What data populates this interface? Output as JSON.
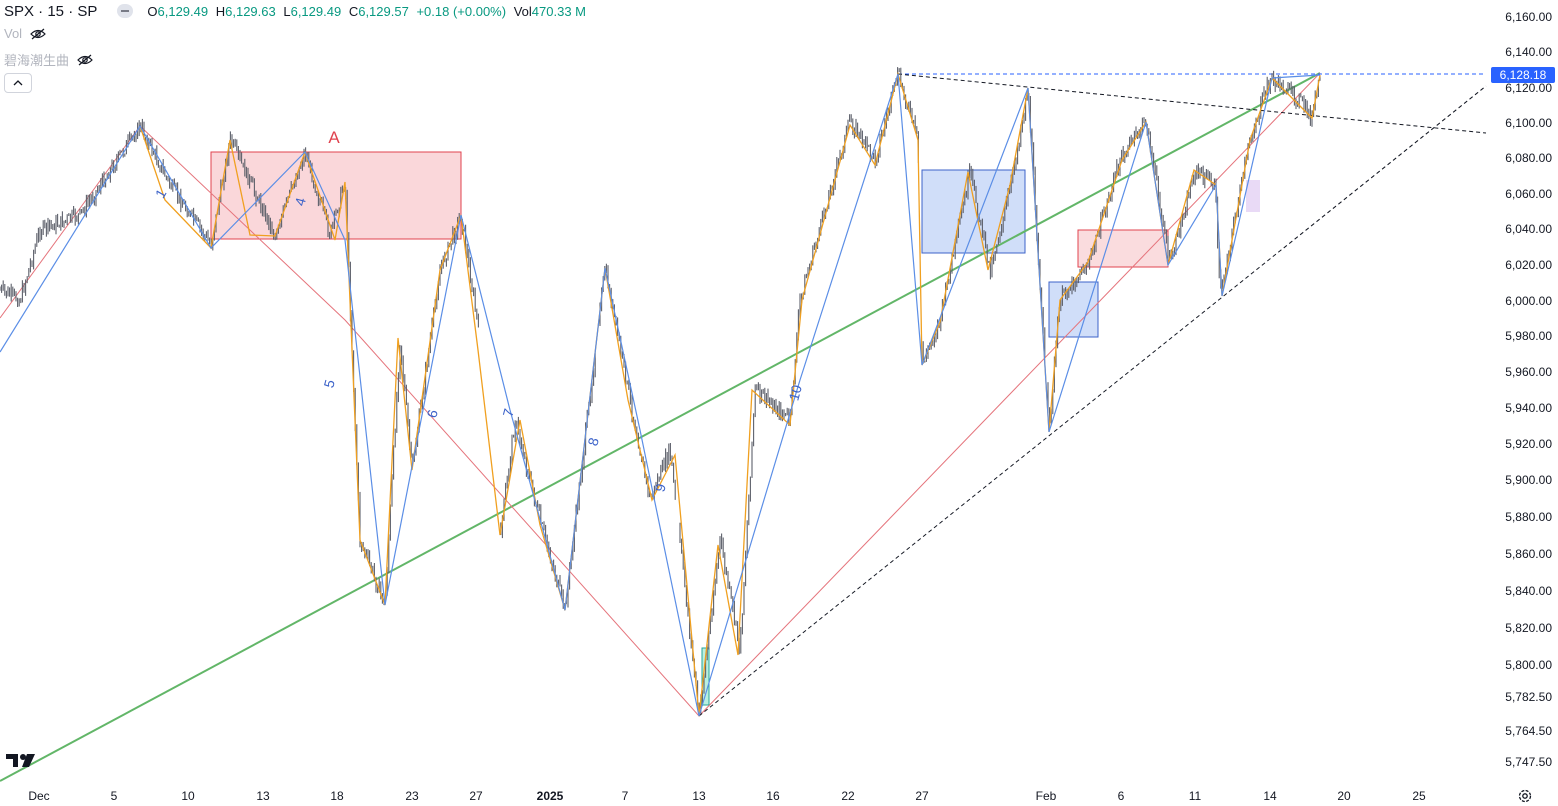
{
  "symbol": {
    "name": "SPX · 15 · SP"
  },
  "ohlc": {
    "o_label": "O",
    "o": "6,129.49",
    "h_label": "H",
    "h": "6,129.63",
    "l_label": "L",
    "l": "6,129.49",
    "c_label": "C",
    "c": "6,129.57",
    "change": "+0.18 (+0.00%)",
    "vol_label": "Vol",
    "vol": "470.33 M"
  },
  "indicators": [
    {
      "label": "Vol",
      "icon": "eye-hidden-icon"
    },
    {
      "label": "碧海潮生曲",
      "icon": "eye-hidden-icon"
    }
  ],
  "price_axis": {
    "ticks": [
      "6,160.00",
      "6,140.00",
      "6,120.00",
      "6,100.00",
      "6,080.00",
      "6,060.00",
      "6,040.00",
      "6,020.00",
      "6,000.00",
      "5,980.00",
      "5,960.00",
      "5,940.00",
      "5,920.00",
      "5,900.00",
      "5,880.00",
      "5,860.00",
      "5,840.00",
      "5,820.00",
      "5,800.00",
      "5,782.50",
      "5,764.50",
      "5,747.50"
    ],
    "current_price": "6,128.18",
    "current_color": "#2962ff"
  },
  "time_axis": {
    "ticks": [
      "Dec",
      "5",
      "10",
      "13",
      "18",
      "23",
      "27",
      "2025",
      "7",
      "13",
      "16",
      "22",
      "27",
      "Feb",
      "6",
      "11",
      "14",
      "20",
      "25"
    ],
    "bold_tick": "2025"
  },
  "annotations": {
    "box_label": "A",
    "wave_labels": [
      "1",
      "4",
      "5",
      "6",
      "7",
      "8",
      "9",
      "10"
    ]
  },
  "colors": {
    "candle": "#5d606b",
    "zigzag_orange": "#f0a020",
    "zigzag_blue": "#5b8ee6",
    "trend_red": "#e5747c",
    "trend_green": "#62b668",
    "dashed": "#131722",
    "box_red_fill": "#f8c9cd",
    "box_blue_fill": "#c4d6f8",
    "label_red": "#e0434f"
  }
}
